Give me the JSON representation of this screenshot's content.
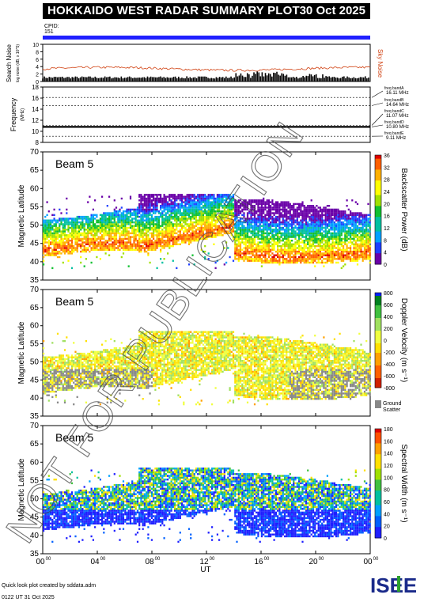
{
  "header": {
    "title": "HOKKAIDO WEST RADAR SUMMARY PLOT",
    "date": "30 Oct 2025"
  },
  "cpid": {
    "label": "CPID:",
    "value": "151"
  },
  "colors": {
    "cpid_bar": "#2020ff",
    "sky_noise": "#d04010",
    "search_noise": "#000000",
    "header_bg": "#000000"
  },
  "noise_panel": {
    "ylabel": "Search Noise",
    "ylabel2": "log noise (dB, x 10^5)",
    "right_label": "Sky Noise",
    "yticks": [
      "0",
      "2",
      "4",
      "6",
      "8",
      "10"
    ]
  },
  "freq_panel": {
    "ylabel": "Frequency",
    "unit": "(MHz)",
    "yticks": [
      "8",
      "10",
      "12",
      "14",
      "16",
      "18"
    ],
    "bands": [
      {
        "name": "freq bandA",
        "value": "16.11 MHz"
      },
      {
        "name": "freq bandB",
        "value": "14.64 MHz"
      },
      {
        "name": "freq bandC",
        "value": "11.07 MHz"
      },
      {
        "name": "freq bandD",
        "value": "10.80 MHz"
      },
      {
        "name": "freq bandE",
        "value": "9.11 MHz"
      }
    ]
  },
  "panels": [
    {
      "beam": "Beam  5",
      "ylabel": "Magnetic Latitude",
      "cbar_label": "Backscatter Power (dB)",
      "cbar_ticks": [
        "0",
        "4",
        "8",
        "12",
        "16",
        "20",
        "24",
        "28",
        "32",
        "36"
      ]
    },
    {
      "beam": "Beam  5",
      "ylabel": "Magnetic Latitude",
      "cbar_label": "Doppler Velocity (m s⁻¹)",
      "cbar_ticks": [
        "800",
        "600",
        "400",
        "200",
        "0",
        "-200",
        "-400",
        "-600",
        "-800"
      ],
      "gs_label": "Ground",
      "gs_label2": "Scatter"
    },
    {
      "beam": "Beam  5",
      "ylabel": "Magnetic Latitude",
      "cbar_label": "Spectral Width (m s⁻¹)",
      "cbar_ticks": [
        "180",
        "160",
        "140",
        "120",
        "100",
        "80",
        "60",
        "40",
        "20",
        "0"
      ]
    }
  ],
  "lat_ticks": [
    "35",
    "40",
    "45",
    "50",
    "55",
    "60",
    "65",
    "70"
  ],
  "x_axis": {
    "label": "UT",
    "ticks": [
      "00",
      "04",
      "08",
      "12",
      "16",
      "20",
      "00"
    ],
    "tick_sup": "00"
  },
  "watermark": "NOT FOR PUBLICATION",
  "footer": {
    "credit": "Quick look plot created by sddata.adm",
    "timestamp": "0122 UT 31 Oct 2025",
    "logo": "ISEE"
  },
  "chart_data": [
    {
      "type": "line",
      "title": "Search Noise / Sky Noise",
      "x_range": [
        0,
        24
      ],
      "ylim": [
        0,
        10
      ],
      "series": [
        {
          "name": "Sky Noise",
          "values_desc": "approximately 3-4 across the day"
        }
      ]
    },
    {
      "type": "line",
      "title": "Frequency",
      "x_range": [
        0,
        24
      ],
      "ylim": [
        8,
        18
      ],
      "bands": [
        16.11,
        14.64,
        11.07,
        10.8,
        9.11
      ],
      "trace_mhz": 10.8
    },
    {
      "type": "heatmap",
      "title": "Backscatter Power",
      "x_range": [
        0,
        24
      ],
      "ylim": [
        35,
        70
      ],
      "zlim": [
        0,
        36
      ]
    },
    {
      "type": "heatmap",
      "title": "Doppler Velocity",
      "x_range": [
        0,
        24
      ],
      "ylim": [
        35,
        70
      ],
      "zlim": [
        -800,
        800
      ]
    },
    {
      "type": "heatmap",
      "title": "Spectral Width",
      "x_range": [
        0,
        24
      ],
      "ylim": [
        35,
        70
      ],
      "zlim": [
        0,
        180
      ]
    }
  ]
}
